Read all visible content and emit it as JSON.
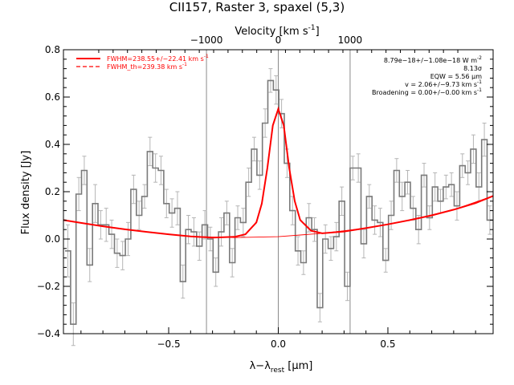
{
  "chart_data": {
    "type": "line",
    "title": "CII157, Raster 3, spaxel (5,3)",
    "xlabel_main": "λ−λ",
    "xlabel_sub": "rest",
    "xlabel_unit": " [μm]",
    "ylabel": "Flux density [Jy]",
    "top_axis_label": "Velocity [km s",
    "top_axis_label_exp": "-1",
    "top_axis_label_end": "]",
    "xlim": [
      -0.98,
      0.98
    ],
    "ylim": [
      -0.4,
      0.8
    ],
    "x_ticks": [
      -0.5,
      0.0,
      0.5
    ],
    "x_tick_labels": [
      "−0.5",
      "0.0",
      "0.5"
    ],
    "y_ticks": [
      -0.4,
      -0.2,
      0.0,
      0.2,
      0.4,
      0.6,
      0.8
    ],
    "y_tick_labels": [
      "−0.4",
      "−0.2",
      "0.0",
      "0.2",
      "0.4",
      "0.6",
      "0.8"
    ],
    "top_ticks_um": [
      -0.3276,
      0.0,
      0.3276
    ],
    "top_tick_labels": [
      "−1000",
      "0",
      "1000"
    ],
    "vertical_lines_um": [
      -0.3276,
      0.0,
      0.3276
    ],
    "legend": [
      {
        "label": "FWHM=238.55+/−22.41 km s",
        "exp": "-1",
        "style": "solid",
        "color": "#ff0000"
      },
      {
        "label": "FWHM_th=239.38 km s",
        "exp": "-1",
        "style": "dashed",
        "color": "#ff0000"
      }
    ],
    "annotations": [
      {
        "text": "8.79e−18+/−1.08e−18 W m",
        "exp": "-2"
      },
      {
        "text": "8.13σ",
        "exp": ""
      },
      {
        "text": "EQW = 5.56 μm",
        "exp": ""
      },
      {
        "text": "v = 2.06+/−9.73 km s",
        "exp": "-1"
      },
      {
        "text": "Broadening = 0.00+/−0.00 km s",
        "exp": "-1"
      }
    ],
    "series": [
      {
        "name": "Spectrum",
        "style": "steps-mid",
        "color": "#808080",
        "x": [
          -0.96,
          -0.935,
          -0.91,
          -0.885,
          -0.86,
          -0.835,
          -0.81,
          -0.785,
          -0.76,
          -0.735,
          -0.71,
          -0.685,
          -0.66,
          -0.635,
          -0.61,
          -0.585,
          -0.56,
          -0.535,
          -0.51,
          -0.485,
          -0.46,
          -0.435,
          -0.41,
          -0.385,
          -0.36,
          -0.335,
          -0.31,
          -0.285,
          -0.26,
          -0.235,
          -0.21,
          -0.185,
          -0.16,
          -0.135,
          -0.11,
          -0.085,
          -0.06,
          -0.035,
          -0.01,
          0.015,
          0.04,
          0.065,
          0.09,
          0.115,
          0.14,
          0.165,
          0.19,
          0.215,
          0.24,
          0.265,
          0.29,
          0.315,
          0.34,
          0.365,
          0.39,
          0.415,
          0.44,
          0.465,
          0.49,
          0.515,
          0.54,
          0.565,
          0.59,
          0.615,
          0.64,
          0.665,
          0.69,
          0.715,
          0.74,
          0.765,
          0.79,
          0.815,
          0.84,
          0.865,
          0.89,
          0.915,
          0.94,
          0.965
        ],
        "y": [
          -0.05,
          -0.36,
          0.19,
          0.29,
          -0.11,
          0.15,
          0.06,
          0.06,
          0.02,
          -0.06,
          -0.07,
          0.0,
          0.21,
          0.1,
          0.18,
          0.37,
          0.3,
          0.29,
          0.15,
          0.11,
          0.13,
          -0.18,
          0.04,
          0.03,
          -0.03,
          0.06,
          0.0,
          -0.14,
          0.03,
          0.11,
          -0.1,
          0.09,
          0.07,
          0.24,
          0.38,
          0.27,
          0.49,
          0.67,
          0.63,
          0.53,
          0.32,
          0.12,
          -0.05,
          -0.1,
          0.09,
          0.04,
          -0.29,
          0.0,
          -0.04,
          0.01,
          0.16,
          -0.2,
          0.3,
          0.3,
          -0.02,
          0.18,
          0.08,
          0.07,
          -0.09,
          0.1,
          0.29,
          0.18,
          0.24,
          0.13,
          0.04,
          0.27,
          0.09,
          0.22,
          0.16,
          0.22,
          0.23,
          0.14,
          0.31,
          0.28,
          0.38,
          0.22,
          0.42,
          0.08
        ],
        "errors": [
          0.11,
          0.09,
          0.07,
          0.06,
          0.07,
          0.08,
          0.06,
          0.07,
          0.06,
          0.06,
          0.06,
          0.07,
          0.06,
          0.06,
          0.05,
          0.06,
          0.06,
          0.06,
          0.06,
          0.06,
          0.07,
          0.07,
          0.06,
          0.06,
          0.06,
          0.06,
          0.05,
          0.06,
          0.06,
          0.05,
          0.06,
          0.05,
          0.06,
          0.06,
          0.05,
          0.06,
          0.06,
          0.05,
          0.06,
          0.06,
          0.06,
          0.06,
          0.06,
          0.05,
          0.06,
          0.05,
          0.06,
          0.06,
          0.05,
          0.06,
          0.06,
          0.06,
          0.05,
          0.06,
          0.06,
          0.05,
          0.06,
          0.06,
          0.05,
          0.06,
          0.05,
          0.06,
          0.05,
          0.05,
          0.06,
          0.05,
          0.05,
          0.06,
          0.05,
          0.05,
          0.05,
          0.06,
          0.05,
          0.05,
          0.06,
          0.06,
          0.07,
          0.06
        ]
      },
      {
        "name": "FWHM=238.55+/−22.41 km s⁻¹",
        "style": "solid",
        "color": "#ff0000",
        "x": [
          -0.98,
          -0.9,
          -0.8,
          -0.7,
          -0.6,
          -0.5,
          -0.4,
          -0.3,
          -0.2,
          -0.15,
          -0.1,
          -0.075,
          -0.05,
          -0.025,
          0.0,
          0.025,
          0.05,
          0.075,
          0.1,
          0.15,
          0.2,
          0.3,
          0.4,
          0.5,
          0.6,
          0.7,
          0.8,
          0.9,
          0.98
        ],
        "y": [
          0.08,
          0.068,
          0.054,
          0.041,
          0.03,
          0.02,
          0.011,
          0.006,
          0.009,
          0.02,
          0.07,
          0.15,
          0.3,
          0.48,
          0.55,
          0.48,
          0.3,
          0.16,
          0.08,
          0.035,
          0.024,
          0.032,
          0.046,
          0.062,
          0.08,
          0.1,
          0.124,
          0.152,
          0.182
        ]
      },
      {
        "name": "FWHM_th=239.38 km s⁻¹",
        "style": "dashed",
        "color": "#ff0000",
        "x": [
          -0.2,
          -0.15,
          -0.1,
          -0.075,
          -0.05,
          -0.025,
          0.0,
          0.025,
          0.05,
          0.075,
          0.1,
          0.15,
          0.2
        ],
        "y": [
          0.009,
          0.02,
          0.072,
          0.152,
          0.303,
          0.482,
          0.553,
          0.482,
          0.303,
          0.162,
          0.082,
          0.036,
          0.024
        ]
      },
      {
        "name": "Continuum",
        "style": "solid-thin",
        "color": "#ff0000",
        "x": [
          -0.98,
          -0.8,
          -0.6,
          -0.4,
          -0.2,
          0.0,
          0.2,
          0.4,
          0.6,
          0.8,
          0.98
        ],
        "y": [
          0.08,
          0.054,
          0.03,
          0.011,
          0.006,
          0.01,
          0.024,
          0.046,
          0.08,
          0.124,
          0.182
        ]
      }
    ]
  }
}
